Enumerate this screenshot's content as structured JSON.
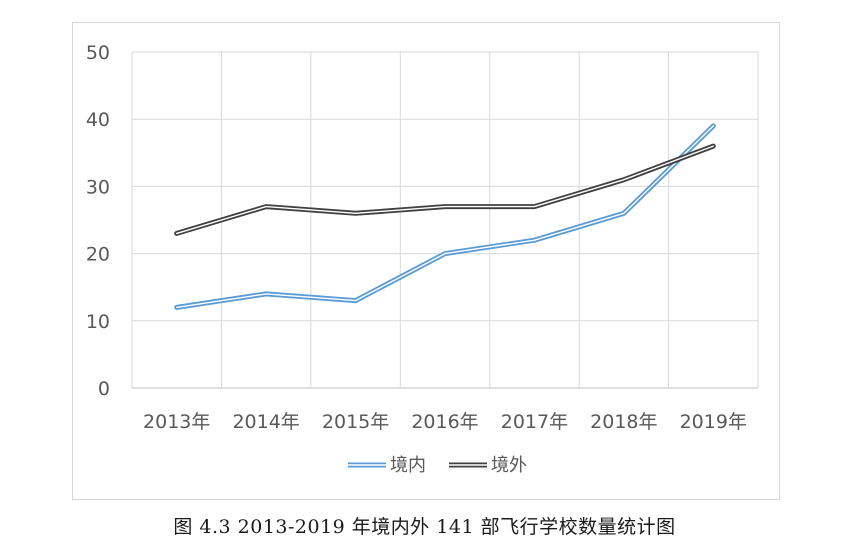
{
  "caption": "图 4.3 2013-2019 年境内外 141 部飞行学校数量统计图",
  "chart_data": {
    "type": "line",
    "title": "",
    "xlabel": "",
    "ylabel": "",
    "categories": [
      "2013年",
      "2014年",
      "2015年",
      "2016年",
      "2017年",
      "2018年",
      "2019年"
    ],
    "ylim": [
      0,
      50
    ],
    "yticks": [
      0,
      10,
      20,
      30,
      40,
      50
    ],
    "grid": true,
    "legend_position": "bottom",
    "series": [
      {
        "name": "境内",
        "values": [
          12,
          14,
          13,
          20,
          22,
          26,
          39
        ],
        "color": "#5b9bd5",
        "style": "double-line"
      },
      {
        "name": "境外",
        "values": [
          23,
          27,
          26,
          27,
          27,
          31,
          36
        ],
        "color": "#404040",
        "style": "double-line"
      }
    ]
  }
}
